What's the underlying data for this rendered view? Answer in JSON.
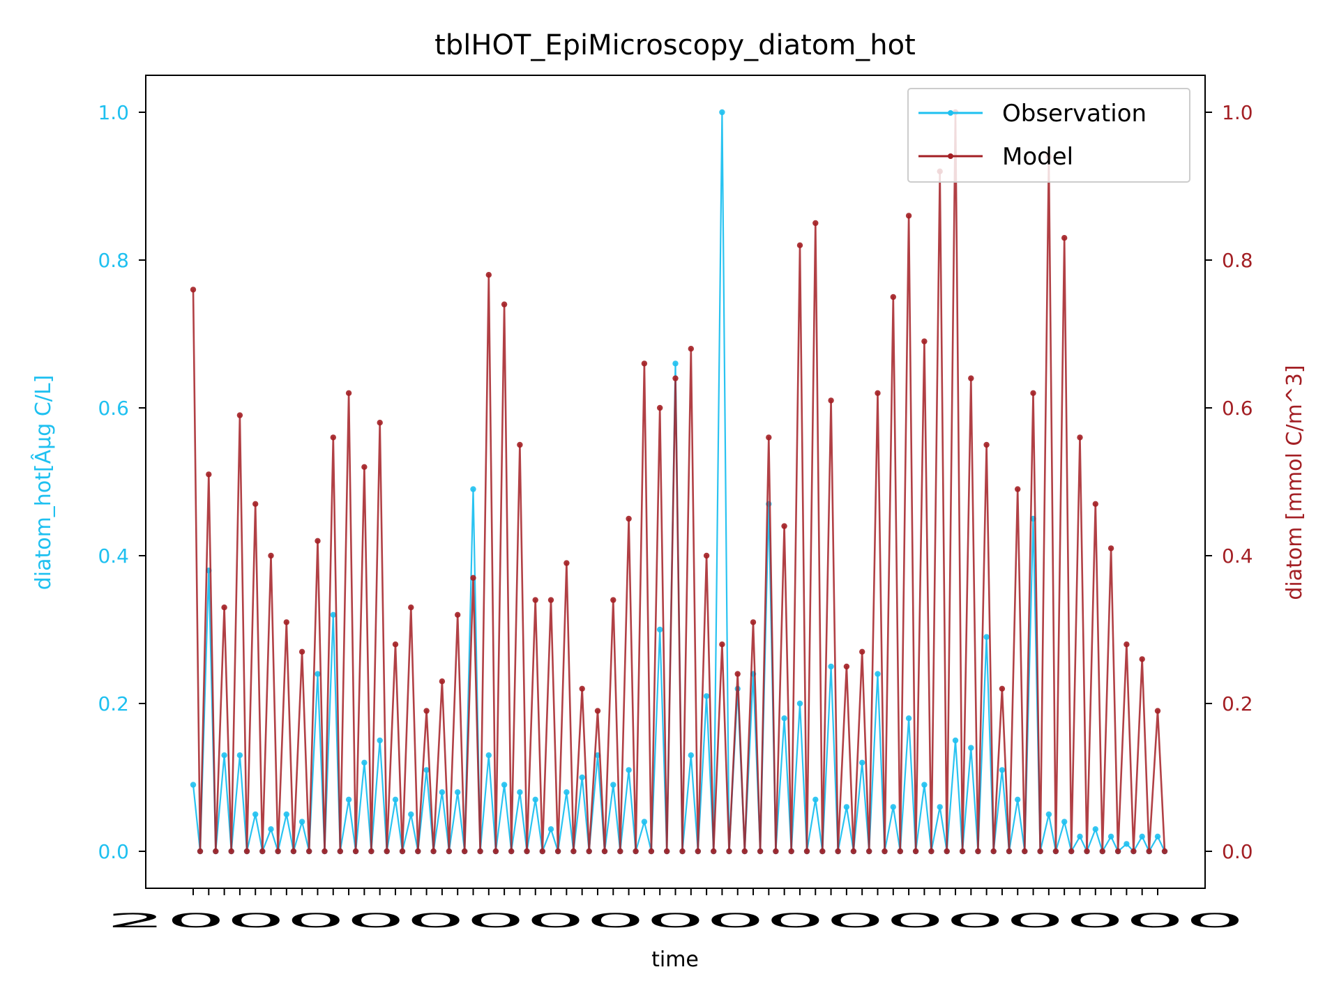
{
  "chart_data": {
    "type": "line",
    "title": "tblHOT_EpiMicroscopy_diatom_hot",
    "xlabel": "time",
    "ylabel_left": "diatom_hot[Âµg C/L]",
    "ylabel_right": "diatom [mmol C/m^3]",
    "x_tick_label_overlap_text": "2000000000000000000",
    "left_axis": {
      "ylim": [
        -0.05,
        1.05
      ],
      "ticks": [
        "0.0",
        "0.2",
        "0.4",
        "0.6",
        "0.8",
        "1.0"
      ],
      "color": "#1ec0f0"
    },
    "right_axis": {
      "ylim": [
        -0.05,
        1.05
      ],
      "ticks": [
        "0.0",
        "0.2",
        "0.4",
        "0.6",
        "0.8",
        "1.0"
      ],
      "color": "#a31f24"
    },
    "legend": {
      "position": "upper right",
      "entries": [
        "Observation",
        "Model"
      ]
    },
    "x": [
      0,
      1,
      2,
      3,
      4,
      5,
      6,
      7,
      8,
      9,
      10,
      11,
      12,
      13,
      14,
      15,
      16,
      17,
      18,
      19,
      20,
      21,
      22,
      23,
      24,
      25,
      26,
      27,
      28,
      29,
      30,
      31,
      32,
      33,
      34,
      35,
      36,
      37,
      38,
      39,
      40,
      41,
      42,
      43,
      44,
      45,
      46,
      47,
      48,
      49,
      50,
      51,
      52,
      53,
      54,
      55,
      56,
      57,
      58,
      59,
      60,
      61,
      62
    ],
    "series": [
      {
        "name": "Observation",
        "axis": "left",
        "color": "#1ec0f0",
        "values": [
          0.09,
          0.38,
          0.13,
          0.13,
          0.05,
          0.03,
          0.05,
          0.04,
          0.24,
          0.32,
          0.07,
          0.12,
          0.15,
          0.07,
          0.05,
          0.11,
          0.08,
          0.08,
          0.49,
          0.13,
          0.09,
          0.08,
          0.07,
          0.03,
          0.08,
          0.1,
          0.13,
          0.09,
          0.11,
          0.04,
          0.3,
          0.66,
          0.13,
          0.21,
          1.0,
          0.22,
          0.24,
          0.47,
          0.18,
          0.2,
          0.07,
          0.25,
          0.06,
          0.12,
          0.24,
          0.06,
          0.18,
          0.09,
          0.06,
          0.15,
          0.14,
          0.29,
          0.11,
          0.07,
          0.45,
          0.05,
          0.04,
          0.02,
          0.03,
          0.02,
          0.01,
          0.02,
          0.02
        ]
      },
      {
        "name": "Model",
        "axis": "right",
        "color": "#a31f24",
        "values": [
          0.76,
          0.51,
          0.33,
          0.59,
          0.47,
          0.4,
          0.31,
          0.27,
          0.42,
          0.56,
          0.62,
          0.52,
          0.58,
          0.28,
          0.33,
          0.19,
          0.23,
          0.32,
          0.37,
          0.78,
          0.74,
          0.55,
          0.34,
          0.34,
          0.39,
          0.22,
          0.19,
          0.34,
          0.45,
          0.66,
          0.6,
          0.64,
          0.68,
          0.4,
          0.28,
          0.24,
          0.31,
          0.56,
          0.44,
          0.82,
          0.85,
          0.61,
          0.25,
          0.27,
          0.62,
          0.75,
          0.86,
          0.69,
          0.92,
          1.0,
          0.64,
          0.55,
          0.22,
          0.49,
          0.62,
          0.94,
          0.83,
          0.56,
          0.47,
          0.41,
          0.28,
          0.26,
          0.19
        ]
      }
    ]
  }
}
